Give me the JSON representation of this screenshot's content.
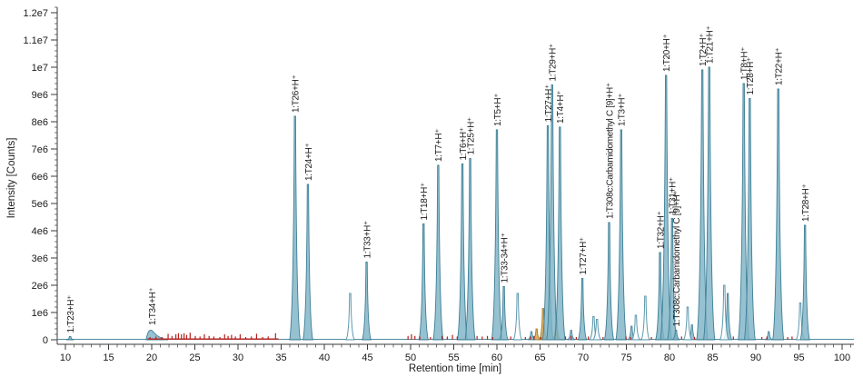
{
  "app": {
    "background": "#ffffff"
  },
  "colors": {
    "axis": "#3a3a3a",
    "tick_text": "#1a1a1a",
    "label_text": "#1a1a1a",
    "peak_fill": "#7fb3c6",
    "peak_fill_opacity": "0.82",
    "peak_stroke": "#3e7f96",
    "unfilled_fill": "#ffffff",
    "unfilled_stroke": "#5b98ad",
    "tan_fill": "#d8ab52",
    "tan_stroke": "#9c7322",
    "red_trace": "#b5201d",
    "baseline": "#4f8ca3"
  },
  "chart_data": {
    "type": "area",
    "subtype": "chromatogram",
    "title": "",
    "xlabel": "Retention time [min]",
    "ylabel": "Intensity [Counts]",
    "xlim": [
      9,
      101.4
    ],
    "ylim_e6": [
      0,
      12.2
    ],
    "grid": false,
    "legend": "none",
    "x_axis": {
      "label": "Retention time [min]",
      "major_ticks": [
        10,
        15,
        20,
        25,
        30,
        35,
        40,
        45,
        50,
        55,
        60,
        65,
        70,
        75,
        80,
        85,
        90,
        95,
        100
      ],
      "minor_step_min": 1
    },
    "y_axis": {
      "label": "Intensity [Counts]",
      "ticks": [
        {
          "v": 0,
          "label": "0"
        },
        {
          "v": 1,
          "label": "1e6"
        },
        {
          "v": 2,
          "label": "2e6"
        },
        {
          "v": 3,
          "label": "3e6"
        },
        {
          "v": 4,
          "label": "4e6"
        },
        {
          "v": 5,
          "label": "5e6"
        },
        {
          "v": 6,
          "label": "6e6"
        },
        {
          "v": 7,
          "label": "7e6"
        },
        {
          "v": 8,
          "label": "8e6"
        },
        {
          "v": 9,
          "label": "9e6"
        },
        {
          "v": 10,
          "label": "1e7"
        },
        {
          "v": 11,
          "label": "1.1e7"
        },
        {
          "v": 12,
          "label": "1.2e7"
        }
      ],
      "minor_step_e6": 0.2
    },
    "labeled_peaks": [
      {
        "t": 10.55,
        "h_e6": 0.12,
        "label": "1:T23+H⁺"
      },
      {
        "t": 20.0,
        "h_e6": 0.4,
        "label": "1:T34+H⁺",
        "broad": true
      },
      {
        "t": 36.6,
        "h_e6": 8.2,
        "label": "1:T26+H⁺"
      },
      {
        "t": 38.1,
        "h_e6": 5.7,
        "label": "1:T24+H⁺"
      },
      {
        "t": 44.9,
        "h_e6": 2.85,
        "label": "1:T33+H⁺"
      },
      {
        "t": 51.5,
        "h_e6": 4.25,
        "label": "1:T18+H⁺"
      },
      {
        "t": 53.2,
        "h_e6": 6.4,
        "label": "1:T7+H⁺"
      },
      {
        "t": 56.0,
        "h_e6": 6.45,
        "label": "1:T6+H⁺"
      },
      {
        "t": 56.9,
        "h_e6": 6.65,
        "label": "1:T25+H⁺"
      },
      {
        "t": 60.0,
        "h_e6": 7.7,
        "label": "1:T5+H⁺"
      },
      {
        "t": 60.8,
        "h_e6": 1.95,
        "label": "1:T33-34+H⁺"
      },
      {
        "t": 65.9,
        "h_e6": 7.85,
        "label": "1:T27+H⁺"
      },
      {
        "t": 66.4,
        "h_e6": 9.35,
        "label": "1:T29+H⁺"
      },
      {
        "t": 67.3,
        "h_e6": 7.8,
        "label": "1:T4+H⁺"
      },
      {
        "t": 69.9,
        "h_e6": 2.25,
        "label": "1:T27+H⁺"
      },
      {
        "t": 73.0,
        "h_e6": 4.3,
        "label": "1:T308c:Carbamidomethyl C [9]+H⁺"
      },
      {
        "t": 74.4,
        "h_e6": 7.7,
        "label": "1:T3+H⁺"
      },
      {
        "t": 78.9,
        "h_e6": 3.2,
        "label": "1:T32+H⁺"
      },
      {
        "t": 79.6,
        "h_e6": 9.7,
        "label": "1:T20+H⁺"
      },
      {
        "t": 80.3,
        "h_e6": 4.45,
        "label": "1:T31+H⁺"
      },
      {
        "t": 80.75,
        "h_e6": 0.35,
        "label": "1:T308c:Carbamidomethyl C [9]+H⁺"
      },
      {
        "t": 83.8,
        "h_e6": 9.9,
        "label": "1:T2+H⁺"
      },
      {
        "t": 84.6,
        "h_e6": 10.0,
        "label": "1:T21+H⁺"
      },
      {
        "t": 88.6,
        "h_e6": 9.4,
        "label": "1:T8+H⁺"
      },
      {
        "t": 89.3,
        "h_e6": 8.85,
        "label": "1:T28+H⁺"
      },
      {
        "t": 92.6,
        "h_e6": 9.2,
        "label": "1:T22+H⁺"
      },
      {
        "t": 95.7,
        "h_e6": 4.2,
        "label": "1:T28+H⁺"
      }
    ],
    "unlabeled_filled_peaks": [
      {
        "t": 64.0,
        "h_e6": 0.3
      },
      {
        "t": 68.6,
        "h_e6": 0.35
      },
      {
        "t": 75.6,
        "h_e6": 0.5
      },
      {
        "t": 82.6,
        "h_e6": 0.55
      },
      {
        "t": 86.75,
        "h_e6": 1.7
      },
      {
        "t": 91.5,
        "h_e6": 0.3
      }
    ],
    "unlabeled_outline_peaks": [
      {
        "t": 43.0,
        "h_e6": 1.7
      },
      {
        "t": 62.4,
        "h_e6": 1.7
      },
      {
        "t": 71.2,
        "h_e6": 0.85
      },
      {
        "t": 71.6,
        "h_e6": 0.75
      },
      {
        "t": 76.1,
        "h_e6": 0.9
      },
      {
        "t": 77.2,
        "h_e6": 1.6
      },
      {
        "t": 82.1,
        "h_e6": 1.2
      },
      {
        "t": 86.35,
        "h_e6": 2.0
      },
      {
        "t": 95.15,
        "h_e6": 1.35
      }
    ],
    "tan_peaks": [
      {
        "t": 64.6,
        "h_e6": 0.4
      },
      {
        "t": 65.35,
        "h_e6": 1.15
      },
      {
        "t": 66.9,
        "h_e6": 0.8
      }
    ],
    "red_trace": {
      "baseline_start_min": 19.5,
      "baseline_end_min": 34.7,
      "spikes": [
        [
          19.8,
          0.1
        ],
        [
          20.5,
          0.12
        ],
        [
          21.2,
          0.1
        ],
        [
          21.9,
          0.22
        ],
        [
          22.35,
          0.14
        ],
        [
          22.8,
          0.2
        ],
        [
          23.1,
          0.24
        ],
        [
          23.45,
          0.2
        ],
        [
          23.75,
          0.24
        ],
        [
          24.05,
          0.18
        ],
        [
          24.45,
          0.26
        ],
        [
          25.05,
          0.14
        ],
        [
          25.6,
          0.12
        ],
        [
          26.1,
          0.2
        ],
        [
          26.65,
          0.14
        ],
        [
          27.2,
          0.12
        ],
        [
          27.9,
          0.1
        ],
        [
          28.45,
          0.2
        ],
        [
          28.85,
          0.14
        ],
        [
          29.25,
          0.18
        ],
        [
          29.7,
          0.12
        ],
        [
          30.25,
          0.2
        ],
        [
          30.9,
          0.1
        ],
        [
          31.55,
          0.12
        ],
        [
          32.15,
          0.22
        ],
        [
          32.85,
          0.1
        ],
        [
          33.5,
          0.12
        ],
        [
          34.35,
          0.24
        ],
        [
          49.7,
          0.14
        ],
        [
          50.1,
          0.2
        ],
        [
          50.5,
          0.14
        ],
        [
          51.05,
          0.12
        ],
        [
          52.3,
          0.1
        ],
        [
          53.65,
          0.14
        ],
        [
          54.25,
          0.12
        ],
        [
          54.85,
          0.18
        ],
        [
          55.4,
          0.12
        ],
        [
          57.7,
          0.14
        ],
        [
          58.3,
          0.12
        ],
        [
          58.9,
          0.14
        ],
        [
          59.5,
          0.1
        ],
        [
          61.6,
          0.12
        ],
        [
          63.3,
          0.1
        ],
        [
          63.9,
          0.12
        ],
        [
          64.3,
          0.14
        ],
        [
          65.1,
          0.1
        ],
        [
          67.95,
          0.12
        ],
        [
          68.6,
          0.14
        ],
        [
          69.2,
          0.1
        ],
        [
          70.6,
          0.12
        ],
        [
          72.3,
          0.1
        ],
        [
          74.95,
          0.12
        ],
        [
          75.5,
          0.1
        ],
        [
          77.9,
          0.1
        ],
        [
          81.4,
          0.12
        ],
        [
          82.9,
          0.1
        ],
        [
          87.4,
          0.12
        ],
        [
          90.7,
          0.1
        ],
        [
          91.3,
          0.12
        ],
        [
          93.7,
          0.1
        ],
        [
          94.2,
          0.12
        ]
      ]
    }
  }
}
